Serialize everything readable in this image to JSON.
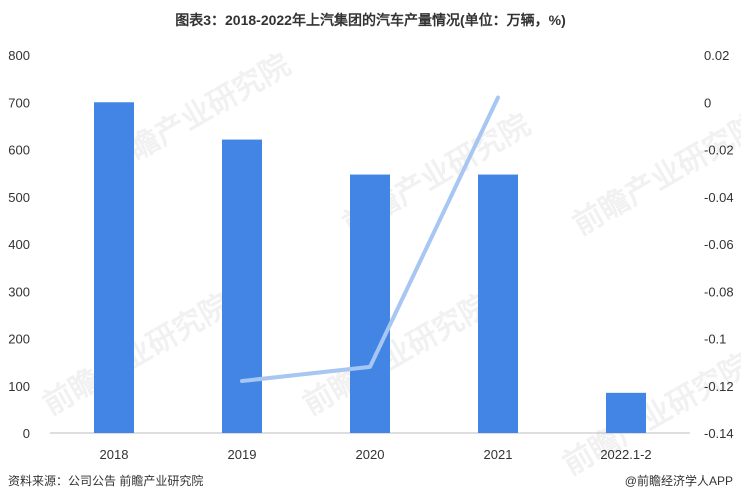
{
  "title": "图表3：2018-2022年上汽集团的汽车产量情况(单位：万辆，%)",
  "watermark": "前瞻产业研究院",
  "footer": {
    "source": "资料来源：公司公告 前瞻产业研究院",
    "brand": "@前瞻经济学人APP"
  },
  "colors": {
    "bar": "#4285e4",
    "line": "#a7c6f2",
    "axis": "#bdbdbd"
  },
  "chart_data": {
    "type": "bar",
    "categories": [
      "2018",
      "2019",
      "2020",
      "2021",
      "2022.1-2"
    ],
    "series": [
      {
        "type": "bar",
        "values": [
          700,
          621,
          547,
          547,
          85
        ]
      },
      {
        "type": "line",
        "axis": "right",
        "values": [
          null,
          -0.118,
          -0.112,
          0.002,
          null
        ]
      }
    ],
    "ylim_left": [
      0,
      800
    ],
    "yticks_left": [
      "0",
      "100",
      "200",
      "300",
      "400",
      "500",
      "600",
      "700",
      "800"
    ],
    "ylim_right": [
      -0.14,
      0.02
    ],
    "yticks_right": [
      "-0.14",
      "-0.12",
      "-0.1",
      "-0.08",
      "-0.06",
      "-0.04",
      "-0.02",
      "0",
      "0.02"
    ],
    "grid": false
  }
}
